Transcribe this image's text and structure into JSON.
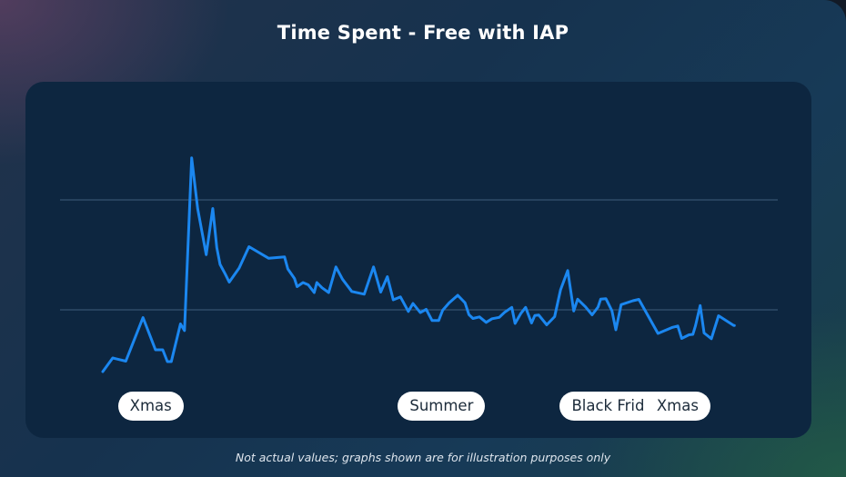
{
  "title": "Time Spent - Free with IAP",
  "footnote": "Not actual values; graphs shown are for illustration purposes only",
  "colors": {
    "line": "#1b87f0",
    "gridline": "#3f5d7c",
    "panel": "#0d2640",
    "pill_bg": "#ffffff"
  },
  "chart_data": {
    "type": "line",
    "title": "Time Spent - Free with IAP",
    "xlabel": "",
    "ylabel": "",
    "grid": "horizontal",
    "x_range": [
      0,
      100
    ],
    "ylim": [
      0,
      100
    ],
    "x": [
      0,
      1.5,
      3.5,
      6.1,
      8,
      9.1,
      9.8,
      10.4,
      11.8,
      12.4,
      13.5,
      14.4,
      15.7,
      16.7,
      17.3,
      17.8,
      18.6,
      19.2,
      20.7,
      22.2,
      25.2,
      27.6,
      28.1,
      29.1,
      29.5,
      30.4,
      31.2,
      32.1,
      32.5,
      33.3,
      34.3,
      35.4,
      36.4,
      37.8,
      39.7,
      41.1,
      42.2,
      43.2,
      44.1,
      45.2,
      46.4,
      47.1,
      48.2,
      49.1,
      50,
      51,
      51.6,
      52.6,
      53.9,
      55,
      55.6,
      56.2,
      57.2,
      58.2,
      59.1,
      60.2,
      61,
      62.1,
      62.6,
      63.5,
      64.2,
      65.1,
      65.6,
      66.2,
      67.4,
      68.6,
      69.5,
      70.6,
      71.5,
      72.1,
      73.3,
      74.3,
      75.2,
      75.6,
      76.4,
      77.3,
      77.9,
      78.7,
      80.5,
      81.4,
      84.3,
      86.5,
      87.3,
      87.9,
      89,
      89.6,
      90,
      90.7,
      91.3,
      92.4,
      93.5,
      95.8,
      95.9
    ],
    "y": [
      0,
      6,
      4.6,
      23.8,
      9.6,
      9.6,
      4.4,
      4.4,
      21,
      18.1,
      94.1,
      71.7,
      51.5,
      71.8,
      54.6,
      47.2,
      42.9,
      39.4,
      45.6,
      55,
      49.9,
      50.5,
      45.2,
      41,
      37.4,
      39.2,
      38.2,
      34.8,
      39.2,
      36.9,
      34.8,
      46.1,
      40.7,
      35.3,
      34.1,
      46.1,
      35,
      41.8,
      31.6,
      32.9,
      26.5,
      30,
      26,
      27.4,
      22.5,
      22.5,
      27,
      30.3,
      33.6,
      30.3,
      25.1,
      23.4,
      24.1,
      21.7,
      23.3,
      23.9,
      26.1,
      28.3,
      21.2,
      25.7,
      28.3,
      21.4,
      24.7,
      24.9,
      20.6,
      24.2,
      36,
      44.5,
      26.7,
      31.9,
      28.5,
      25,
      28.4,
      31.9,
      32.1,
      26.8,
      18.4,
      29.5,
      31.2,
      31.8,
      16.8,
      19.5,
      20.1,
      14.6,
      16.2,
      16.4,
      20.3,
      29.1,
      17,
      14.5,
      24.6,
      20.3,
      20.3
    ],
    "gridlines_y": [
      27.2,
      75.6
    ],
    "annotations": [
      {
        "label": "Xmas",
        "x": 2.3
      },
      {
        "label": "Summer",
        "x": 44.8
      },
      {
        "label": "Black Friday",
        "x": 69.4
      },
      {
        "label": "Xmas",
        "x": 82.3
      }
    ]
  }
}
